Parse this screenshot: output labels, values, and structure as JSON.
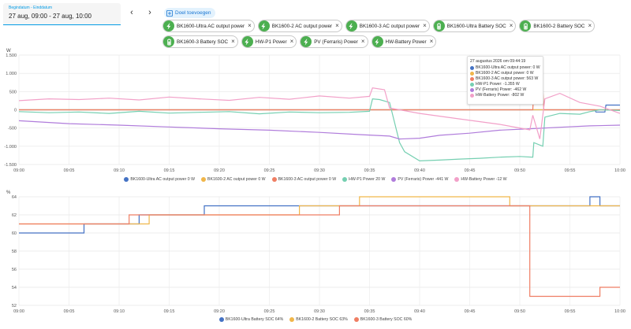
{
  "daterange": {
    "label": "Begindatum - Einddatum",
    "value": "27 aug, 09:00 - 27 aug, 10:00"
  },
  "nav": {
    "prev": "‹",
    "next": "›"
  },
  "add_target": "Doel toevoegen",
  "chips": [
    {
      "label": "BK1600-Ultra AC output power",
      "icon": "flash-icon"
    },
    {
      "label": "BK1600-2 AC output power",
      "icon": "flash-icon"
    },
    {
      "label": "BK1600-3 AC output power",
      "icon": "flash-icon"
    },
    {
      "label": "BK1600-Ultra Battery SOC",
      "icon": "battery-icon"
    },
    {
      "label": "BK1600-2 Battery SOC",
      "icon": "battery-icon"
    },
    {
      "label": "BK1600-3 Battery SOC",
      "icon": "battery-icon"
    },
    {
      "label": "HW-P1 Power",
      "icon": "flash-icon"
    },
    {
      "label": "PV (Ferraris) Power",
      "icon": "flash-icon"
    },
    {
      "label": "HW-Battery Power",
      "icon": "flash-icon"
    }
  ],
  "colors": {
    "blue": "#4472c4",
    "yellow": "#f0b64a",
    "red": "#ef7e63",
    "teal": "#75cfb1",
    "purple": "#b07cdb",
    "pink": "#f2a0c8",
    "accent": "#039be5",
    "green": "#4caf50"
  },
  "tooltip": {
    "title": "27 augustus 2026 om 09:44:19",
    "rows": [
      {
        "text": "BK1600-Ultra AC output power: 0 W",
        "color": "#4472c4"
      },
      {
        "text": "BK1600-2 AC output power: 0 W",
        "color": "#f0b64a"
      },
      {
        "text": "BK1600-3 AC output power: 563 W",
        "color": "#ef7e63"
      },
      {
        "text": "HW-P1 Power: -1.355 W",
        "color": "#75cfb1"
      },
      {
        "text": "PV (Ferraris) Power: -462 W",
        "color": "#b07cdb"
      },
      {
        "text": "HW-Battery Power: -802 W",
        "color": "#f2a0c8"
      }
    ]
  },
  "chart_data": [
    {
      "type": "line",
      "ylabel": "W",
      "ylim": [
        -1500,
        1500
      ],
      "yticks": [
        "1.500",
        "1.000",
        "500",
        "0",
        "-500",
        "-1.000",
        "-1.500"
      ],
      "ytick_values": [
        1500,
        1000,
        500,
        0,
        -500,
        -1000,
        -1500
      ],
      "xticks": [
        "09:00",
        "09:05",
        "09:10",
        "09:15",
        "09:20",
        "09:25",
        "09:30",
        "09:35",
        "09:40",
        "09:45",
        "09:50",
        "09:55",
        "10:00"
      ],
      "series": [
        {
          "name": "BK1600-Ultra AC output power",
          "legend": "BK1600-Ultra AC output power 0 W",
          "color": "#4472c4",
          "x": [
            0,
            57.5,
            57.6,
            58.5,
            58.6,
            60
          ],
          "y": [
            0,
            0,
            -60,
            -60,
            130,
            130
          ]
        },
        {
          "name": "BK1600-2 AC output power",
          "legend": "BK1600-2 AC output power 0 W",
          "color": "#f0b64a",
          "x": [
            0,
            60
          ],
          "y": [
            0,
            0
          ]
        },
        {
          "name": "BK1600-3 AC output power",
          "legend": "BK1600-3 AC output power 0 W",
          "color": "#ef7e63",
          "x": [
            0,
            51.3,
            51.4,
            52.3,
            52.4,
            60
          ],
          "y": [
            0,
            0,
            560,
            560,
            0,
            0
          ]
        },
        {
          "name": "HW-P1 Power",
          "legend": "HW-P1 Power 20 W",
          "color": "#75cfb1",
          "x": [
            0,
            3,
            6,
            9,
            12,
            15,
            18,
            21,
            24,
            27,
            30,
            33,
            35,
            35.3,
            36,
            37,
            38,
            38.5,
            40,
            42,
            44,
            46,
            48,
            50,
            51.3,
            51.4,
            52.3,
            52.5,
            54,
            56,
            57,
            58,
            60
          ],
          "y": [
            -50,
            -80,
            -60,
            -100,
            -40,
            -90,
            -70,
            -50,
            -110,
            -60,
            -80,
            -70,
            -40,
            300,
            280,
            200,
            -900,
            -1150,
            -1400,
            -1380,
            -1350,
            -1330,
            -1300,
            -1280,
            -1300,
            -900,
            -1000,
            -200,
            -100,
            -120,
            -50,
            0,
            -20
          ]
        },
        {
          "name": "PV (Ferraris) Power",
          "legend": "PV (Ferraris) Power -441 W",
          "color": "#b07cdb",
          "x": [
            0,
            5,
            10,
            15,
            20,
            25,
            30,
            34,
            37,
            38,
            40,
            42,
            45,
            48,
            51,
            54,
            57,
            60
          ],
          "y": [
            -300,
            -380,
            -420,
            -470,
            -520,
            -560,
            -620,
            -680,
            -720,
            -800,
            -780,
            -700,
            -640,
            -560,
            -520,
            -480,
            -440,
            -420
          ]
        },
        {
          "name": "HW-Battery Power",
          "legend": "HW-Battery Power -12 W",
          "color": "#f2a0c8",
          "x": [
            0,
            3,
            6,
            9,
            12,
            15,
            18,
            21,
            24,
            27,
            30,
            33,
            35,
            35.3,
            36.5,
            37,
            38,
            40,
            44,
            48,
            51,
            51.3,
            52,
            52.5,
            54,
            56,
            58,
            60
          ],
          "y": [
            250,
            300,
            280,
            320,
            270,
            350,
            300,
            260,
            340,
            290,
            380,
            320,
            370,
            600,
            550,
            50,
            0,
            -100,
            -250,
            -400,
            -550,
            -150,
            -800,
            300,
            450,
            200,
            100,
            -100
          ]
        }
      ]
    },
    {
      "type": "line",
      "ylabel": "%",
      "ylim": [
        52,
        64
      ],
      "yticks": [
        "64",
        "62",
        "60",
        "58",
        "56",
        "54",
        "52"
      ],
      "ytick_values": [
        64,
        62,
        60,
        58,
        56,
        54,
        52
      ],
      "xticks": [
        "09:00",
        "09:05",
        "09:10",
        "09:15",
        "09:20",
        "09:25",
        "09:30",
        "09:35",
        "09:40",
        "09:45",
        "09:50",
        "09:55",
        "10:00"
      ],
      "series": [
        {
          "name": "BK1600-Ultra Battery SOC",
          "legend": "BK1600-Ultra Battery SOC 64%",
          "color": "#4472c4",
          "x": [
            0,
            6.5,
            6.5,
            12,
            12,
            18.5,
            18.5,
            26.5,
            26.5,
            34.5,
            34.5,
            57,
            57,
            58,
            58,
            60
          ],
          "y": [
            60,
            60,
            61,
            61,
            62,
            62,
            63,
            63,
            63,
            63,
            63,
            63,
            64,
            64,
            63,
            63
          ]
        },
        {
          "name": "BK1600-2 Battery SOC",
          "legend": "BK1600-2 Battery SOC 63%",
          "color": "#f0b64a",
          "x": [
            0,
            13,
            13,
            18,
            18,
            28,
            28,
            34,
            34,
            49,
            49,
            60
          ],
          "y": [
            61,
            61,
            62,
            62,
            62,
            62,
            63,
            63,
            64,
            64,
            63,
            63
          ]
        },
        {
          "name": "BK1600-3 Battery SOC",
          "legend": "BK1600-3 Battery SOC 60%",
          "color": "#ef7e63",
          "x": [
            0,
            11,
            11,
            25,
            25,
            32,
            32,
            36,
            36,
            51,
            51,
            58,
            58,
            60
          ],
          "y": [
            61,
            61,
            62,
            62,
            62,
            62,
            63,
            63,
            63,
            63,
            53,
            53,
            54,
            54
          ]
        }
      ]
    }
  ]
}
